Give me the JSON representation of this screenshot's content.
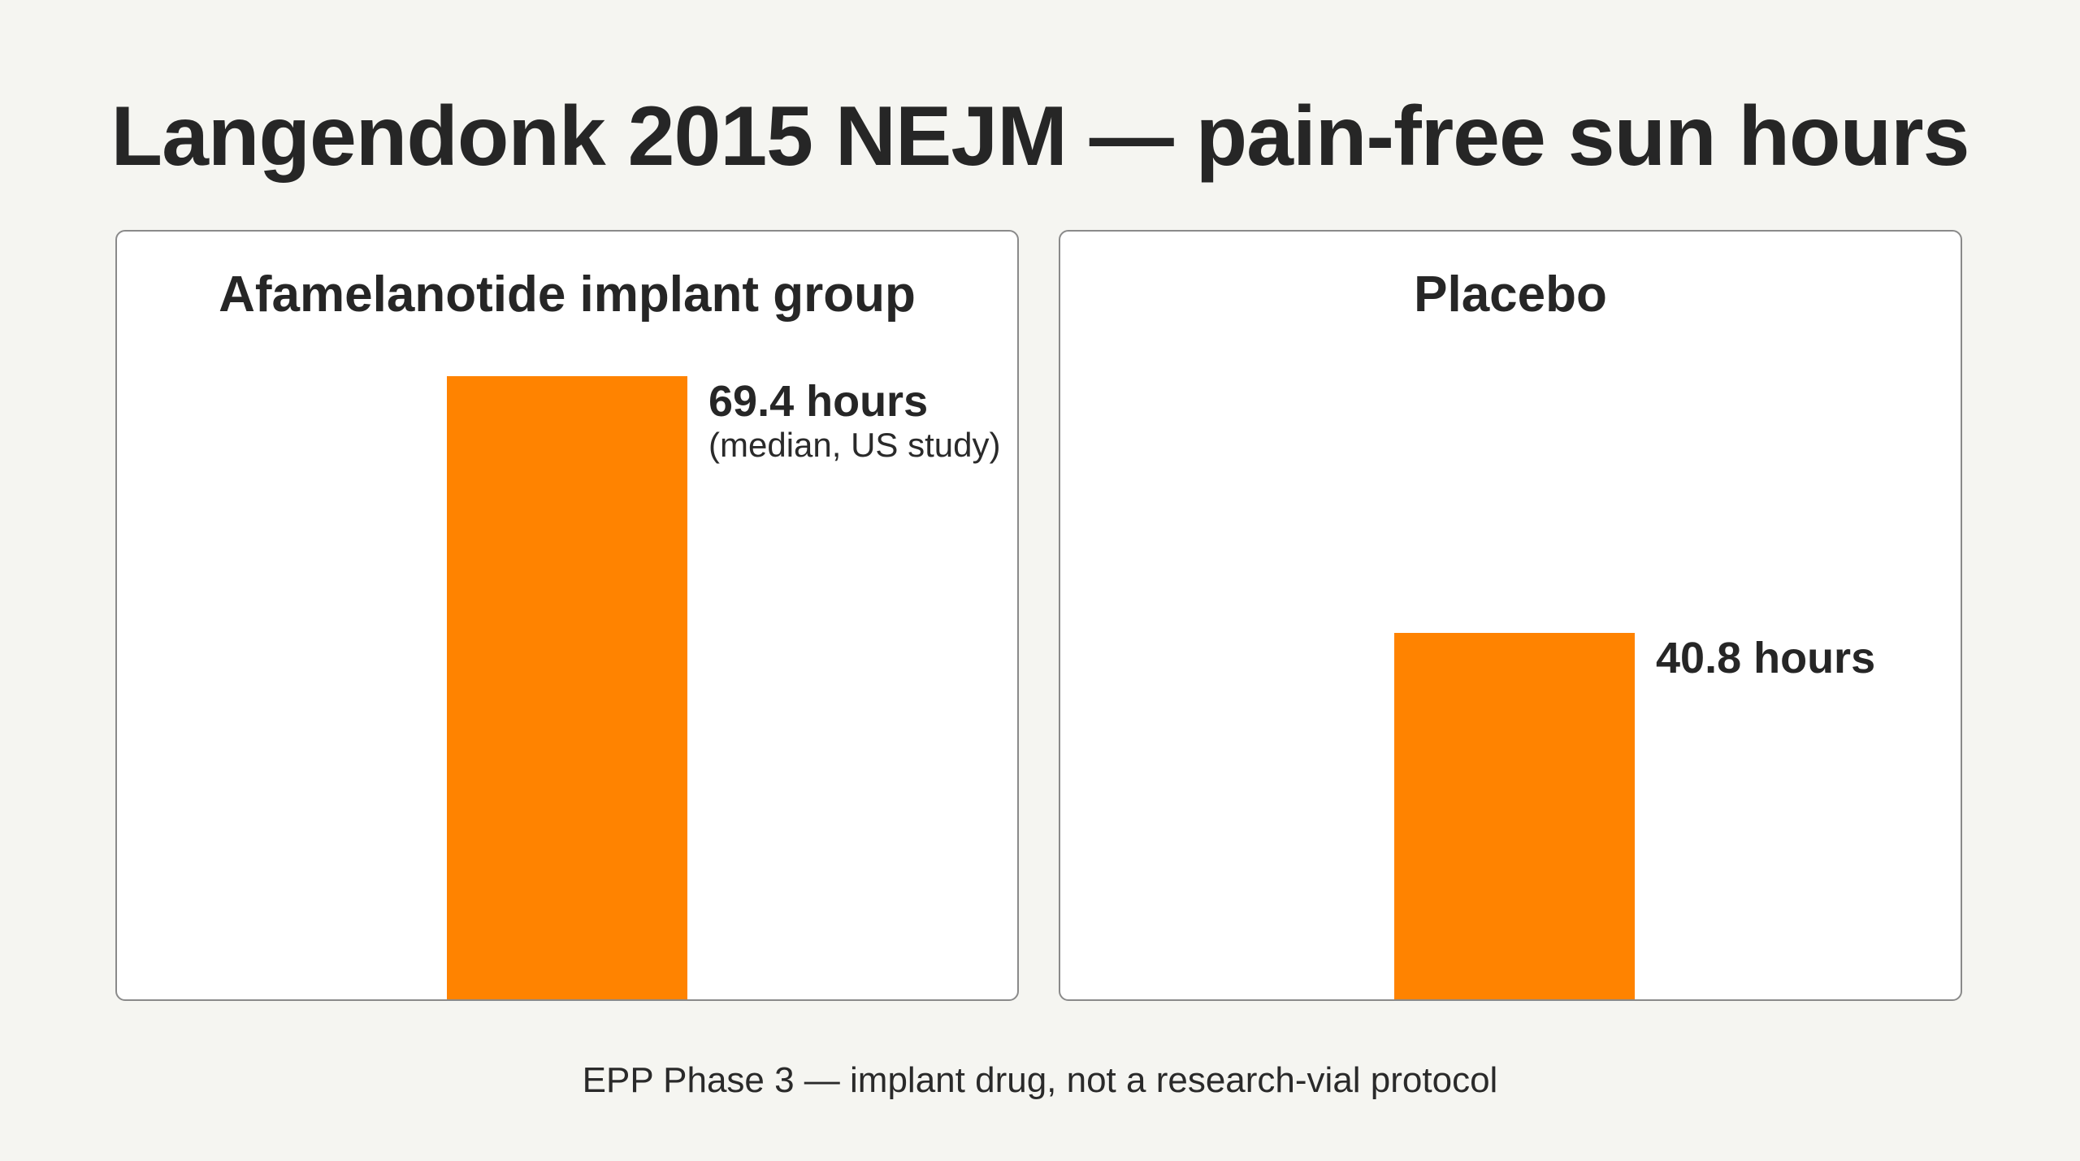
{
  "title": "Langendonk 2015 NEJM — pain-free sun hours",
  "footer": "EPP Phase 3 — implant drug, not a research-vial protocol",
  "colors": {
    "bar": "#ff8300",
    "background": "#f5f5f1",
    "panel": "#ffffff"
  },
  "chart_data": [
    {
      "type": "bar",
      "title": "Afamelanotide implant group",
      "categories": [
        "Afamelanotide implant group"
      ],
      "values": [
        69.4
      ],
      "unit": "hours",
      "data_label": "69.4 hours",
      "note": "(median, US study)",
      "ylim": [
        0,
        80
      ]
    },
    {
      "type": "bar",
      "title": "Placebo",
      "categories": [
        "Placebo"
      ],
      "values": [
        40.8
      ],
      "unit": "hours",
      "data_label": "40.8 hours",
      "ylim": [
        0,
        80
      ]
    }
  ]
}
